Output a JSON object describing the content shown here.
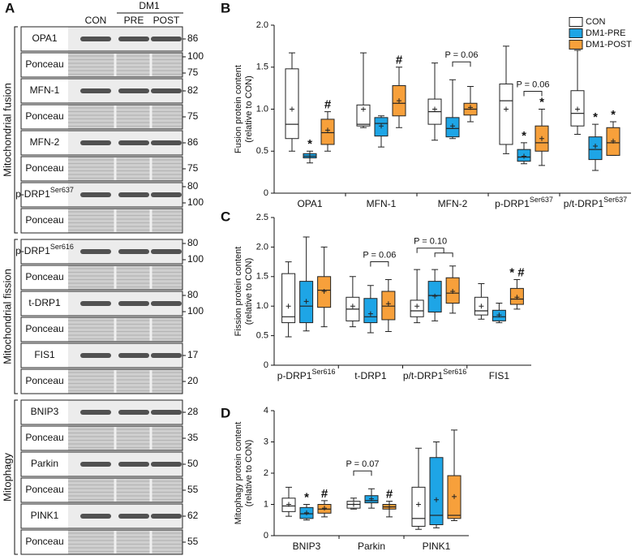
{
  "panel_labels": [
    "A",
    "B",
    "C",
    "D"
  ],
  "blots": {
    "lane_labels": [
      "CON",
      "PRE",
      "POST"
    ],
    "group_label": "DM1",
    "groups": [
      {
        "name": "Mitochondrial fusion",
        "rows": [
          {
            "label": "OPA1",
            "markers": [
              86
            ]
          },
          {
            "label": "Ponceau",
            "markers": [
              100,
              75
            ]
          },
          {
            "label": "MFN-1",
            "markers": [
              82
            ]
          },
          {
            "label": "Ponceau",
            "markers": [
              75
            ]
          },
          {
            "label": "MFN-2",
            "markers": [
              86
            ]
          },
          {
            "label": "Ponceau",
            "markers": [
              75
            ]
          },
          {
            "label": "p-DRP1",
            "sup": "Ser637",
            "markers": [
              80,
              100
            ]
          },
          {
            "label": "Ponceau",
            "markers": []
          }
        ]
      },
      {
        "name": "Mitochondrial fission",
        "rows": [
          {
            "label": "p-DRP1",
            "sup": "Ser616",
            "markers": [
              80,
              100
            ]
          },
          {
            "label": "Ponceau",
            "markers": []
          },
          {
            "label": "t-DRP1",
            "markers": [
              80,
              100
            ]
          },
          {
            "label": "Ponceau",
            "markers": []
          },
          {
            "label": "FIS1",
            "markers": [
              17
            ]
          },
          {
            "label": "Ponceau",
            "markers": [
              20
            ]
          }
        ]
      },
      {
        "name": "Mitophagy",
        "rows": [
          {
            "label": "BNIP3",
            "markers": [
              28
            ]
          },
          {
            "label": "Ponceau",
            "markers": [
              35
            ]
          },
          {
            "label": "Parkin",
            "markers": [
              50
            ]
          },
          {
            "label": "Ponceau",
            "markers": [
              55
            ]
          },
          {
            "label": "PINK1",
            "markers": [
              62
            ]
          },
          {
            "label": "Ponceau",
            "markers": [
              55
            ]
          }
        ]
      }
    ]
  },
  "chart_data": [
    {
      "type": "box",
      "ylabel": [
        "Fusion protein content",
        "(relative to CON)"
      ],
      "legend": "upper right",
      "categories": [
        "OPA1",
        "MFN-1",
        "MFN-2",
        "p-DRP1",
        "p/t-DRP1"
      ],
      "category_superscripts": [
        null,
        null,
        null,
        "Ser637",
        "Ser637"
      ],
      "ylim": [
        0,
        2
      ],
      "yticks": [
        0,
        0.5,
        {
          "value": 1,
          "label": "1.0"
        },
        1.5,
        {
          "value": 2,
          "label": "2.0"
        }
      ],
      "series": [
        {
          "name": "CON",
          "color": "#ffffff",
          "annotations": [
            null,
            null,
            null,
            null,
            null
          ],
          "values": [
            {
              "min": 0.5,
              "q1": 0.65,
              "median": 0.82,
              "q3": 1.48,
              "max": 1.67,
              "mean": 1.0
            },
            {
              "min": 0.78,
              "q1": 0.8,
              "median": 0.82,
              "q3": 1.05,
              "max": 1.67,
              "mean": 1.0
            },
            {
              "min": 0.63,
              "q1": 0.82,
              "median": 0.97,
              "q3": 1.12,
              "max": 1.55,
              "mean": 1.0
            },
            {
              "min": 0.47,
              "q1": 0.58,
              "median": 1.1,
              "q3": 1.3,
              "max": 1.75,
              "mean": 1.0
            },
            {
              "min": 0.7,
              "q1": 0.8,
              "median": 0.95,
              "q3": 1.22,
              "max": 1.7,
              "mean": 1.0
            }
          ]
        },
        {
          "name": "DM1-PRE",
          "color": "#1ea5e6",
          "annotations": [
            "*",
            null,
            null,
            "*",
            "*"
          ],
          "values": [
            {
              "min": 0.36,
              "q1": 0.42,
              "median": 0.44,
              "q3": 0.47,
              "max": 0.5,
              "mean": 0.44
            },
            {
              "min": 0.55,
              "q1": 0.68,
              "median": 0.83,
              "q3": 0.9,
              "max": 0.92,
              "mean": 0.8
            },
            {
              "min": 0.65,
              "q1": 0.67,
              "median": 0.77,
              "q3": 0.9,
              "max": 1.35,
              "mean": 0.8
            },
            {
              "min": 0.35,
              "q1": 0.38,
              "median": 0.43,
              "q3": 0.52,
              "max": 0.6,
              "mean": 0.44
            },
            {
              "min": 0.27,
              "q1": 0.4,
              "median": 0.52,
              "q3": 0.67,
              "max": 0.82,
              "mean": 0.56
            }
          ]
        },
        {
          "name": "DM1-POST",
          "color": "#f7a03b",
          "annotations": [
            "#",
            "#",
            null,
            "*",
            "*"
          ],
          "values": [
            {
              "min": 0.5,
              "q1": 0.58,
              "median": 0.72,
              "q3": 0.88,
              "max": 0.97,
              "mean": 0.75
            },
            {
              "min": 0.78,
              "q1": 0.92,
              "median": 1.07,
              "q3": 1.28,
              "max": 1.5,
              "mean": 1.1
            },
            {
              "min": 0.85,
              "q1": 0.93,
              "median": 1.0,
              "q3": 1.07,
              "max": 1.27,
              "mean": 1.02
            },
            {
              "min": 0.33,
              "q1": 0.5,
              "median": 0.6,
              "q3": 0.8,
              "max": 1.0,
              "mean": 0.65
            },
            {
              "min": 0.45,
              "q1": 0.45,
              "median": 0.6,
              "q3": 0.78,
              "max": 0.85,
              "mean": 0.62
            }
          ]
        }
      ],
      "brackets": [
        {
          "label": "P = 0.06",
          "category": "MFN-2",
          "series": [
            "DM1-PRE",
            "DM1-POST"
          ]
        },
        {
          "label": "P = 0.06",
          "category": "p-DRP1",
          "series": [
            "DM1-PRE",
            "DM1-POST"
          ]
        }
      ]
    },
    {
      "type": "box",
      "ylabel": [
        "Fission protein content",
        "(relative to CON)"
      ],
      "categories": [
        "p-DRP1",
        "t-DRP1",
        "p/t-DRP1",
        "FIS1"
      ],
      "category_superscripts": [
        "Ser616",
        null,
        "Ser616",
        null
      ],
      "ylim": [
        0,
        2.5
      ],
      "yticks": [
        0,
        0.5,
        {
          "value": 1,
          "label": "1.0"
        },
        1.5,
        {
          "value": 2,
          "label": "2.0"
        },
        2.5
      ],
      "series": [
        {
          "name": "CON",
          "color": "#ffffff",
          "annotations": [
            null,
            null,
            null,
            null
          ],
          "values": [
            {
              "min": 0.48,
              "q1": 0.72,
              "median": 0.82,
              "q3": 1.55,
              "max": 1.75,
              "mean": 1.0
            },
            {
              "min": 0.65,
              "q1": 0.75,
              "median": 0.95,
              "q3": 1.15,
              "max": 1.5,
              "mean": 1.0
            },
            {
              "min": 0.72,
              "q1": 0.82,
              "median": 0.92,
              "q3": 1.1,
              "max": 1.62,
              "mean": 1.0
            },
            {
              "min": 0.78,
              "q1": 0.85,
              "median": 0.92,
              "q3": 1.15,
              "max": 1.38,
              "mean": 1.0
            }
          ]
        },
        {
          "name": "DM1-PRE",
          "color": "#1ea5e6",
          "annotations": [
            null,
            null,
            null,
            null
          ],
          "values": [
            {
              "min": 0.58,
              "q1": 0.72,
              "median": 1.0,
              "q3": 1.42,
              "max": 2.17,
              "mean": 1.08
            },
            {
              "min": 0.55,
              "q1": 0.72,
              "median": 0.82,
              "q3": 1.13,
              "max": 1.35,
              "mean": 0.87
            },
            {
              "min": 0.75,
              "q1": 0.9,
              "median": 1.18,
              "q3": 1.42,
              "max": 1.62,
              "mean": 1.17
            },
            {
              "min": 0.72,
              "q1": 0.75,
              "median": 0.82,
              "q3": 0.93,
              "max": 1.05,
              "mean": 0.85
            }
          ]
        },
        {
          "name": "DM1-POST",
          "color": "#f7a03b",
          "annotations": [
            null,
            null,
            null,
            "* #"
          ],
          "values": [
            {
              "min": 0.65,
              "q1": 0.98,
              "median": 1.27,
              "q3": 1.5,
              "max": 2.0,
              "mean": 1.25
            },
            {
              "min": 0.57,
              "q1": 0.77,
              "median": 1.0,
              "q3": 1.25,
              "max": 1.45,
              "mean": 1.04
            },
            {
              "min": 0.88,
              "q1": 1.05,
              "median": 1.22,
              "q3": 1.48,
              "max": 1.68,
              "mean": 1.25
            },
            {
              "min": 0.95,
              "q1": 1.03,
              "median": 1.12,
              "q3": 1.3,
              "max": 1.45,
              "mean": 1.15
            }
          ]
        }
      ],
      "brackets": [
        {
          "label": "P = 0.06",
          "category": "t-DRP1",
          "series": [
            "DM1-PRE",
            "DM1-POST"
          ]
        },
        {
          "label": "P = 0.10",
          "category": "p/t-DRP1",
          "series": [
            "CON",
            [
              "DM1-PRE",
              "DM1-POST"
            ]
          ]
        }
      ]
    },
    {
      "type": "box",
      "ylabel": [
        "Mitophagy protein content",
        "(relative to CON)"
      ],
      "categories": [
        "BNIP3",
        "Parkin",
        "PINK1"
      ],
      "category_superscripts": [
        null,
        null,
        null
      ],
      "ylim": [
        0,
        4
      ],
      "yticks": [
        0,
        1,
        2,
        3,
        4
      ],
      "series": [
        {
          "name": "CON",
          "color": "#ffffff",
          "annotations": [
            null,
            null,
            null
          ],
          "values": [
            {
              "min": 0.62,
              "q1": 0.77,
              "median": 0.95,
              "q3": 1.2,
              "max": 1.55,
              "mean": 1.0
            },
            {
              "min": 0.85,
              "q1": 0.88,
              "median": 1.0,
              "q3": 1.1,
              "max": 1.2,
              "mean": 1.0
            },
            {
              "min": 0.2,
              "q1": 0.3,
              "median": 0.55,
              "q3": 1.55,
              "max": 2.8,
              "mean": 1.0
            }
          ]
        },
        {
          "name": "DM1-PRE",
          "color": "#1ea5e6",
          "annotations": [
            "*",
            null,
            null
          ],
          "values": [
            {
              "min": 0.5,
              "q1": 0.55,
              "median": 0.7,
              "q3": 0.9,
              "max": 1.0,
              "mean": 0.73
            },
            {
              "min": 0.88,
              "q1": 1.05,
              "median": 1.12,
              "q3": 1.28,
              "max": 1.5,
              "mean": 1.18
            },
            {
              "min": 0.25,
              "q1": 0.35,
              "median": 0.65,
              "q3": 2.5,
              "max": 3.0,
              "mean": 1.15
            }
          ]
        },
        {
          "name": "DM1-POST",
          "color": "#f7a03b",
          "annotations": [
            "#",
            "#",
            null
          ],
          "values": [
            {
              "min": 0.6,
              "q1": 0.72,
              "median": 0.85,
              "q3": 1.0,
              "max": 1.12,
              "mean": 0.88
            },
            {
              "min": 0.6,
              "q1": 0.85,
              "median": 0.92,
              "q3": 1.0,
              "max": 1.1,
              "mean": 0.92
            },
            {
              "min": 0.48,
              "q1": 0.55,
              "median": 0.65,
              "q3": 1.92,
              "max": 3.38,
              "mean": 1.25
            }
          ]
        }
      ],
      "brackets": [
        {
          "label": "P = 0.07",
          "category": "Parkin",
          "series": [
            "CON",
            "DM1-PRE"
          ]
        }
      ]
    }
  ]
}
